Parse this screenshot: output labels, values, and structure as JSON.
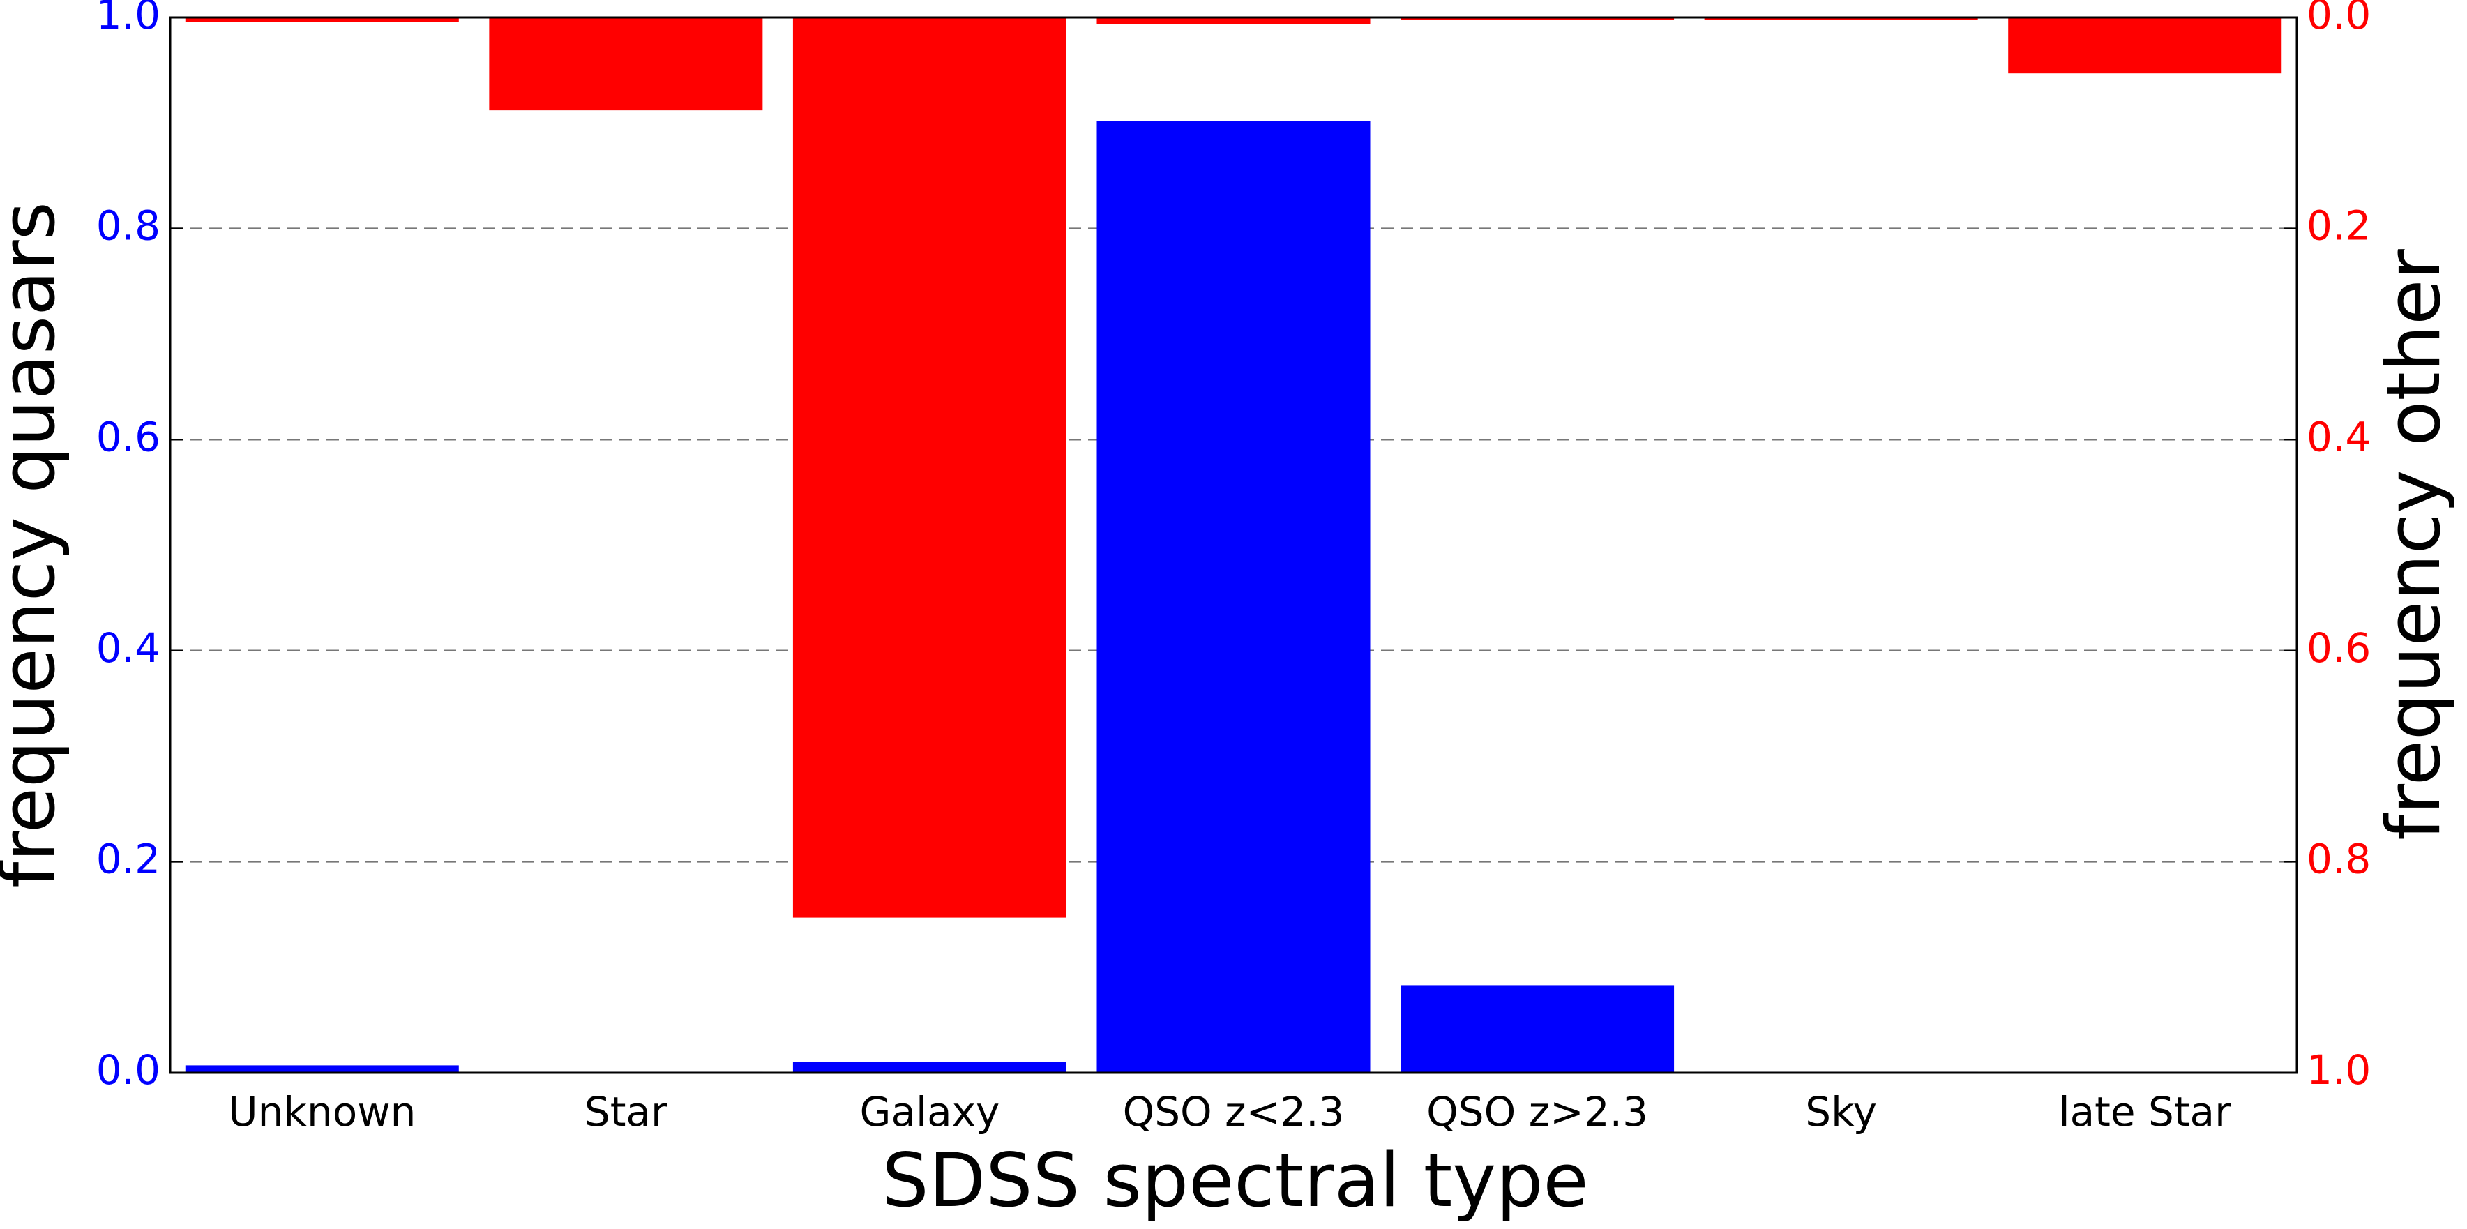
{
  "chart_data": {
    "type": "bar",
    "x_label": "SDSS spectral type",
    "y_label": "frequency quasars",
    "y2_label": "frequency other",
    "categories": [
      "Unknown",
      "Star",
      "Galaxy",
      "QSO z<2.3",
      "QSO z>2.3",
      "Sky",
      "late Star"
    ],
    "series": [
      {
        "name": "quasars",
        "color": "#0000ff",
        "values": [
          0.007,
          0.001,
          0.01,
          0.902,
          0.083,
          0.001,
          0.001
        ]
      },
      {
        "name": "other",
        "color": "#ff0000",
        "axis": "y2",
        "values": [
          0.004,
          0.088,
          0.853,
          0.006,
          0.002,
          0.002,
          0.053
        ]
      }
    ],
    "ylim": [
      0,
      1
    ],
    "yticks": [
      {
        "value": 0,
        "label": "0.0"
      },
      0.2,
      0.4,
      0.6,
      0.8,
      {
        "value": 1,
        "label": "1.0"
      }
    ],
    "y2lim": [
      0,
      1
    ],
    "y2_inverted": true,
    "y2ticks": [
      {
        "value": 0,
        "label": "0.0"
      },
      0.2,
      0.4,
      0.6,
      0.8,
      {
        "value": 1,
        "label": "1.0"
      }
    ],
    "y_color": "#0000ff",
    "y2_color": "#ff0000",
    "grid": true
  }
}
